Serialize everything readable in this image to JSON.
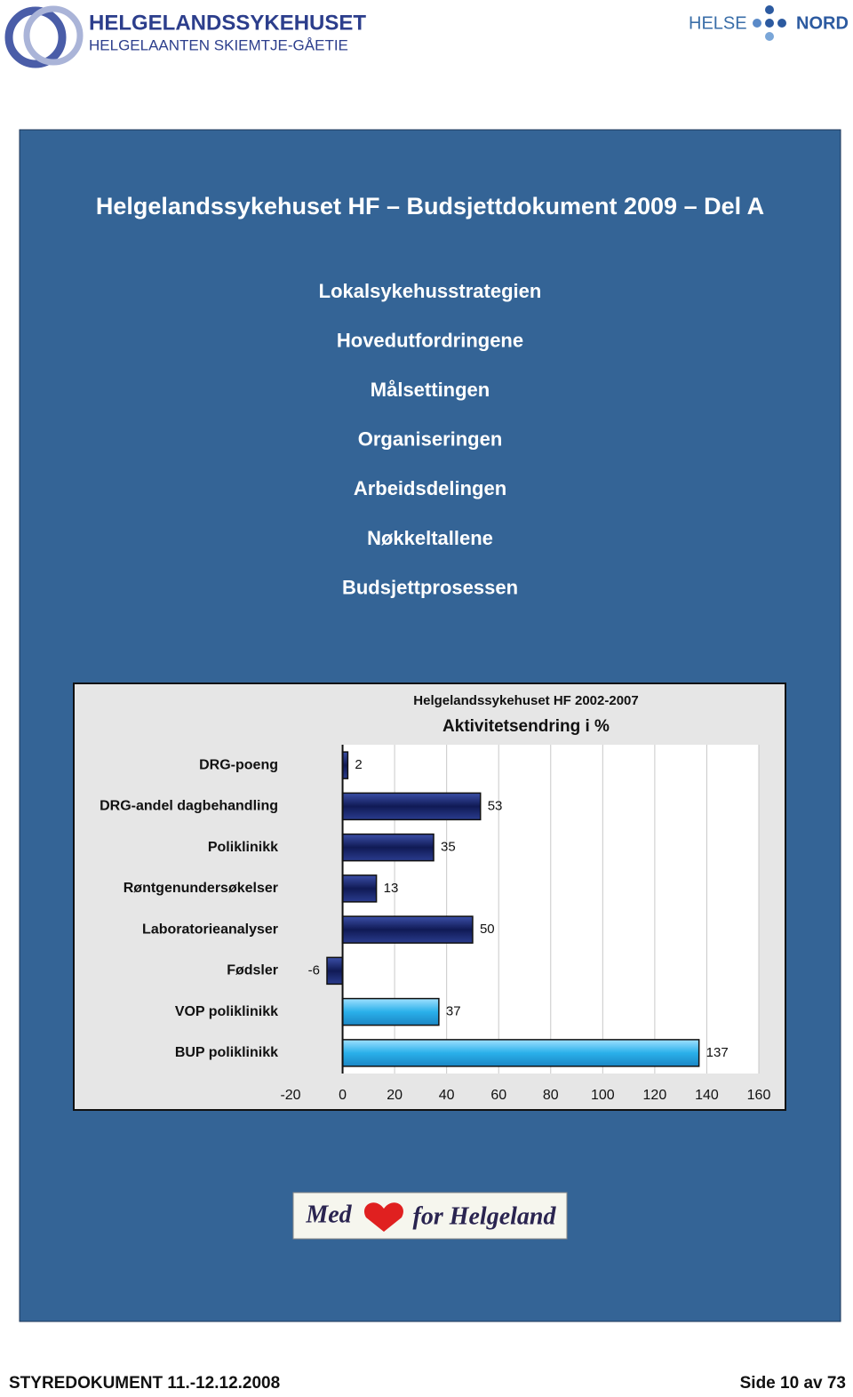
{
  "header": {
    "logo_left_line1": "HELGELANDSSYKEHUSET",
    "logo_left_line2": "HELGELAANTEN SKIEMTJE-GÅETIE",
    "logo_right_left": "HELSE",
    "logo_right_right": "NORD"
  },
  "panel": {
    "title": "Helgelandssykehuset HF – Budsjettdokument 2009 – Del A",
    "items": [
      "Lokalsykehusstrategien",
      "Hovedutfordringene",
      "Målsettingen",
      "Organiseringen",
      "Arbeidsdelingen",
      "Nøkkeltallene",
      "Budsjettprosessen"
    ],
    "logo_words": [
      "Med",
      "for Helgeland"
    ]
  },
  "chart_data": {
    "type": "hbar",
    "title": "Helgelandssykehuset HF 2002-2007",
    "subtitle": "Aktivitetsendring i %",
    "categories": [
      "DRG-poeng",
      "DRG-andel dagbehandling",
      "Poliklinikk",
      "Røntgenundersøkelser",
      "Laboratorieanalyser",
      "Fødsler",
      "VOP poliklinikk",
      "BUP poliklinikk"
    ],
    "values": [
      2,
      53,
      35,
      13,
      50,
      -6,
      37,
      137
    ],
    "colors": [
      "#1c2a6e",
      "#1c2a6e",
      "#1c2a6e",
      "#1c2a6e",
      "#1c2a6e",
      "#1c2a6e",
      "#35b8ee",
      "#35b8ee"
    ],
    "xlim": [
      -20,
      160
    ],
    "xticks": [
      -20,
      0,
      20,
      40,
      60,
      80,
      100,
      120,
      140,
      160
    ],
    "grid": true
  },
  "footer": {
    "left": "STYREDOKUMENT 11.-12.12.2008",
    "right": "Side 10 av 73"
  }
}
